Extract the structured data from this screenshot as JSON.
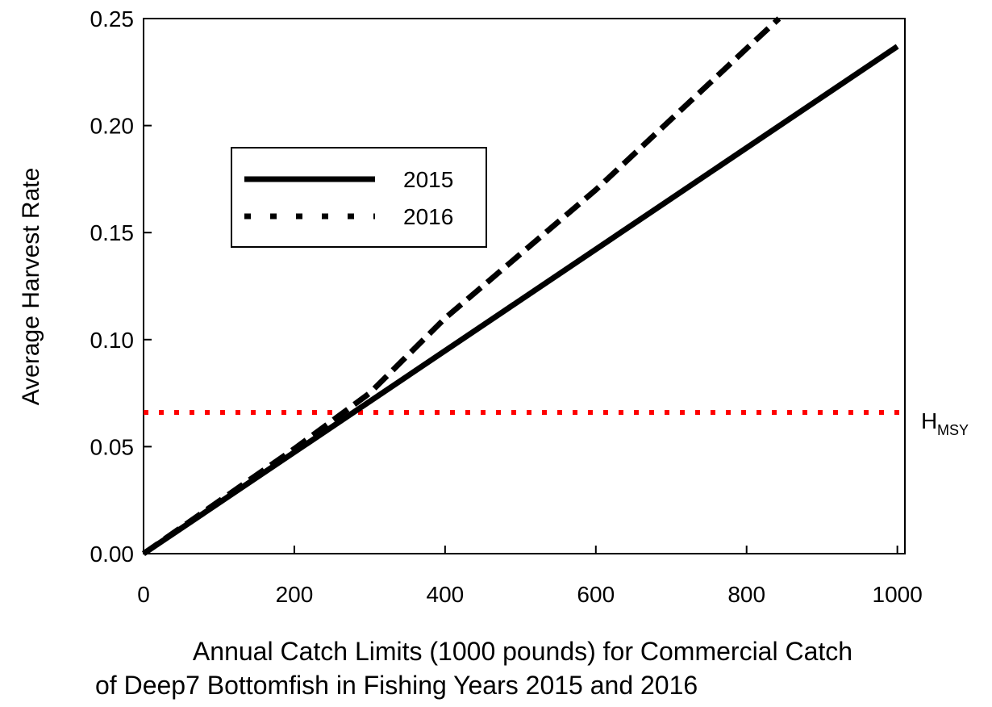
{
  "chart_data": {
    "type": "line",
    "ylabel": "Average Harvest Rate",
    "xlabel": [
      "Annual Catch Limits (1000 pounds) for Commercial Catch",
      "of Deep7 Bottomfish in Fishing Years 2015 and 2016"
    ],
    "xlim": [
      0,
      1010
    ],
    "xticks": [
      0,
      200,
      400,
      600,
      800,
      1000
    ],
    "ylim": [
      0,
      0.25
    ],
    "yticks": [
      {
        "value": 0,
        "label": "0.00"
      },
      0.05,
      {
        "value": 0.1,
        "label": "0.10"
      },
      0.15,
      {
        "value": 0.2,
        "label": "0.20"
      },
      0.25
    ],
    "series": [
      {
        "name": "2015",
        "color": "#000000",
        "dash": "solid",
        "x": [
          0,
          1000
        ],
        "values": [
          0,
          0.237
        ]
      },
      {
        "name": "2016",
        "color": "#000000",
        "dash": "dashed",
        "x": [
          0,
          200,
          300,
          400,
          500,
          600,
          700,
          800,
          843
        ],
        "values": [
          0,
          0.049,
          0.075,
          0.11,
          0.14,
          0.17,
          0.203,
          0.236,
          0.25
        ]
      }
    ],
    "reference_line": {
      "value": 0.066,
      "color": "#ff0000",
      "label": "H",
      "label_sub": "MSY"
    }
  }
}
